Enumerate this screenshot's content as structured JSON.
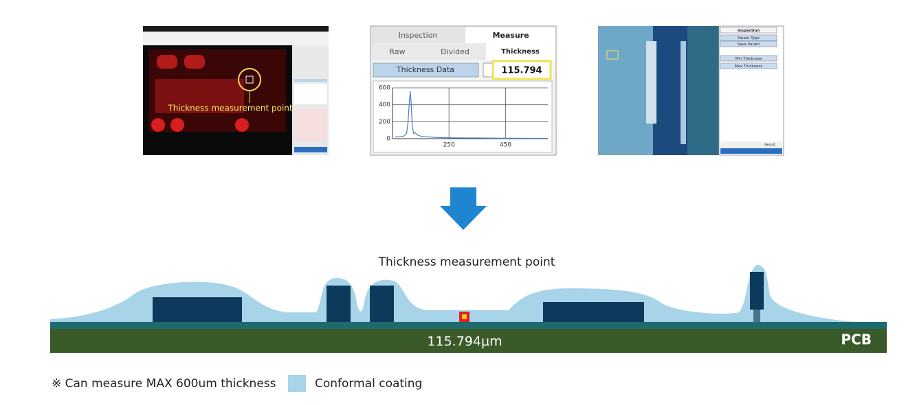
{
  "inspection_view": {
    "overlay_label": "Thickness measurement point"
  },
  "measure_panel": {
    "tabs": [
      "Inspection",
      "Measure"
    ],
    "subtabs": [
      "Raw",
      "Divided",
      "Thickness"
    ],
    "data_button": "Thickness Data",
    "reading": "115.794",
    "chart": {
      "type": "line",
      "color": "#4a7fc4",
      "x": [
        60,
        80,
        90,
        100,
        105,
        110,
        113,
        116,
        120,
        125,
        130,
        140,
        150,
        160,
        180,
        200,
        250,
        300,
        350,
        400,
        450,
        500,
        550,
        600
      ],
      "values": [
        20,
        25,
        30,
        60,
        200,
        450,
        560,
        420,
        150,
        60,
        70,
        40,
        30,
        25,
        20,
        15,
        10,
        8,
        8,
        6,
        5,
        5,
        4,
        4
      ],
      "xlim": [
        50,
        600
      ],
      "ylim": [
        0,
        600
      ],
      "xticks": [
        250,
        450
      ],
      "yticks": [
        0,
        200,
        400,
        600
      ],
      "grid": true
    }
  },
  "settings_panel": {
    "items": [
      "Inspection",
      "Param Type",
      "Save Param",
      "Min Thickness",
      "Max Thickness"
    ],
    "result_header": "Result"
  },
  "diagram": {
    "point_label": "Thickness measurement point",
    "measurement": "115.794µm",
    "board_label": "PCB"
  },
  "notes": {
    "capacity": "※  Can measure MAX 600um thickness",
    "legend": "Conformal coating"
  }
}
